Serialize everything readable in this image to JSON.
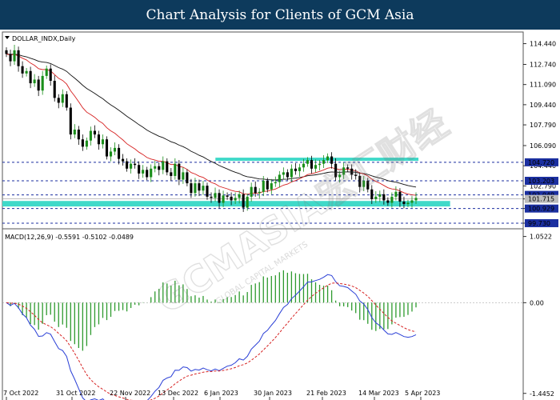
{
  "header": {
    "title": "Chart Analysis for Clients of GCM Asia"
  },
  "watermark": "GCMASIA宏汇财经",
  "watermark_sub": "GLOBAL CAPITAL MARKETS",
  "colors": {
    "bull": "#1a8f1a",
    "bear": "#000000",
    "ema_fast": "#d62020",
    "ema_slow": "#111111",
    "zone": "#40d9c9",
    "support": "#1b2fa0",
    "macd": "#2a3fd6",
    "signal": "#d62020",
    "hist": "#2e9a2e"
  },
  "chart_data": [
    {
      "type": "candlestick",
      "symbol_label": "DOLLAR_INDX,Daily",
      "ylim": [
        99.4,
        115.4
      ],
      "yticks": [
        "114.440",
        "112.740",
        "111.090",
        "109.440",
        "107.790",
        "106.090",
        "104.440",
        "102.790",
        "101.715",
        "100.929",
        "99.730"
      ],
      "levels": [
        {
          "label": "104.720",
          "value": 104.72
        },
        {
          "label": "103.203",
          "value": 103.203
        },
        {
          "label": "102.049",
          "value": 102.049
        },
        {
          "label": "101.715",
          "value": 101.715
        },
        {
          "label": "100.929",
          "value": 100.929
        },
        {
          "label": "99.730",
          "value": 99.73
        }
      ],
      "zones": [
        {
          "x_start": "6 Jan 2023",
          "x_end": "28 Mar 2023",
          "low": 104.9,
          "high": 105.1
        },
        {
          "x_start": "26 Sep 2022",
          "x_end": "12 Apr 2023",
          "low": 101.1,
          "high": 101.55
        }
      ],
      "closes": [
        113.6,
        113.0,
        113.9,
        112.6,
        112.0,
        112.2,
        111.2,
        111.5,
        110.6,
        111.8,
        112.4,
        111.4,
        110.0,
        109.6,
        110.3,
        109.2,
        107.0,
        107.4,
        106.6,
        106.0,
        106.5,
        107.3,
        107.0,
        106.2,
        106.6,
        105.2,
        105.6,
        105.9,
        105.0,
        104.8,
        104.2,
        104.6,
        104.5,
        103.8,
        104.1,
        103.5,
        104.2,
        104.4,
        104.1,
        104.8,
        103.9,
        103.6,
        104.6,
        103.3,
        103.9,
        103.0,
        102.2,
        103.0,
        102.4,
        102.8,
        101.9,
        101.8,
        102.2,
        101.4,
        102.0,
        101.9,
        101.6,
        101.8,
        102.1,
        101.0,
        101.9,
        102.7,
        102.2,
        102.3,
        103.2,
        102.5,
        103.0,
        103.1,
        103.7,
        103.9,
        103.5,
        104.2,
        104.0,
        104.3,
        104.6,
        104.9,
        104.2,
        104.5,
        104.6,
        104.9,
        105.2,
        104.6,
        103.5,
        103.7,
        104.3,
        104.2,
        103.7,
        103.6,
        102.7,
        103.2,
        102.5,
        101.7,
        101.9,
        102.1,
        101.6,
        101.4,
        101.9,
        102.3,
        101.5,
        101.3,
        101.4,
        101.6,
        101.8
      ],
      "x_ticks": [
        "7 Oct 2022",
        "31 Oct 2022",
        "22 Nov 2022",
        "13 Dec 2022",
        "6 Jan 2023",
        "30 Jan 2023",
        "21 Feb 2023",
        "14 Mar 2023",
        "5 Apr 2023"
      ]
    },
    {
      "type": "macd",
      "label": "MACD(12,26,9) -0.5591 -0.5102 -0.0489",
      "ylim": [
        -1.55,
        1.15
      ],
      "yticks": [
        "1.0522",
        "0.00",
        "-1.4452"
      ]
    }
  ]
}
